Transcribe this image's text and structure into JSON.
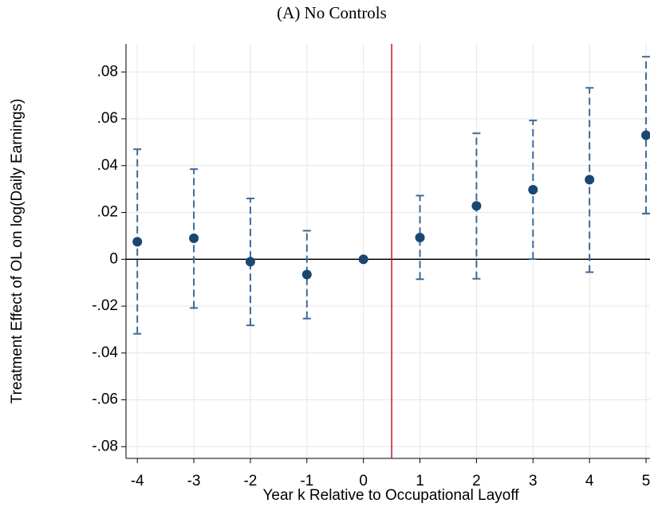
{
  "chart_data": {
    "type": "scatter",
    "title": "(A) No Controls",
    "xlabel": "Year k Relative to Occupational Layoff",
    "ylabel": "Treatment Effect of OL on log(Daily Earnings)",
    "x": [
      -4,
      -3,
      -2,
      -1,
      0,
      1,
      2,
      3,
      4,
      5
    ],
    "series": [
      {
        "color": "#1a476f",
        "bar_color": "#3d6a96",
        "values": [
          0.0075,
          0.009,
          -0.001,
          -0.0065,
          0,
          0.0093,
          0.0228,
          0.0297,
          0.034,
          0.053
        ],
        "lower": [
          -0.0318,
          -0.0208,
          -0.0282,
          -0.0253,
          null,
          -0.0085,
          -0.0083,
          0.0001,
          -0.0055,
          0.0195
        ],
        "upper": [
          0.047,
          0.0385,
          0.026,
          0.0122,
          null,
          0.0272,
          0.0538,
          0.0593,
          0.0732,
          0.0865
        ]
      }
    ],
    "xlim": [
      -4.2,
      5.07
    ],
    "ylim": [
      -0.085,
      0.092
    ],
    "xticks": [
      -4,
      -3,
      -2,
      -1,
      0,
      1,
      2,
      3,
      4,
      5
    ],
    "yticks": [
      {
        "value": -0.08,
        "label": "-.08"
      },
      {
        "value": -0.06,
        "label": "-.06"
      },
      {
        "value": -0.04,
        "label": "-.04"
      },
      {
        "value": -0.02,
        "label": "-.02"
      },
      0,
      {
        "value": 0.02,
        "label": ".02"
      },
      {
        "value": 0.04,
        "label": ".04"
      },
      {
        "value": 0.06,
        "label": ".06"
      },
      {
        "value": 0.08,
        "label": ".08"
      }
    ],
    "grid": true,
    "hline": 0,
    "hline_color": "#000000",
    "vline": 0.5,
    "vline_color": "#c8102e"
  }
}
